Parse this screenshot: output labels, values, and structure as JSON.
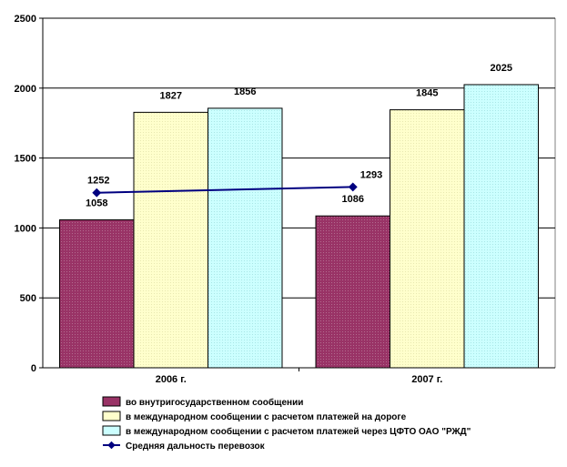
{
  "chart_data": {
    "type": "bar",
    "categories": [
      "2006 г.",
      "2007 г."
    ],
    "series": [
      {
        "name": "во внутригосударственном  сообщении",
        "values": [
          1058,
          1086
        ],
        "color": "#993366"
      },
      {
        "name": "в международном сообщении с расчетом платежей на дороге",
        "values": [
          1827,
          1845
        ],
        "color": "#ffffcc"
      },
      {
        "name": "в международном сообщении с расчетом платежей через ЦФТО ОАО  \"РЖД\"",
        "values": [
          1856,
          2025
        ],
        "color": "#ccffff"
      }
    ],
    "line_series": {
      "name": "Средняя дальность перевозок",
      "values": [
        1252,
        1293
      ],
      "color": "#000080"
    },
    "ylim": [
      0,
      2500
    ],
    "yticks": [
      "0",
      "500",
      "1000",
      "1500",
      "2000",
      "2500"
    ],
    "grid": true,
    "legend": "bottom"
  }
}
